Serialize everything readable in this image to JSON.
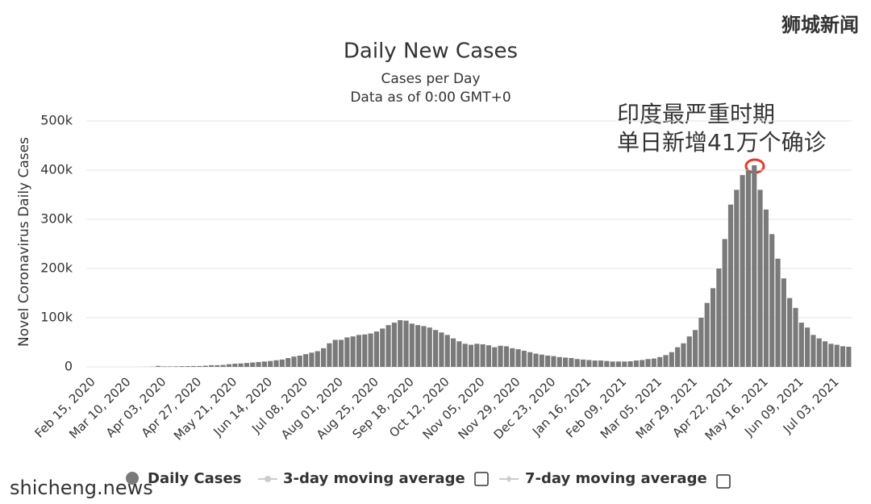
{
  "chart_data": {
    "type": "bar",
    "title": "Daily New Cases",
    "subtitle": [
      "Cases per Day",
      "Data as of 0:00 GMT+0"
    ],
    "y_label": "Novel Coronavirus Daily Cases",
    "annotations": [
      "印度最严重时期",
      "单日新增41万个确诊"
    ],
    "watermarks": [
      "狮城新闻",
      "shicheng.news"
    ],
    "inactive_legend": [
      "3-day moving average",
      "7-day moving average"
    ],
    "ylim": [
      0,
      500000
    ],
    "yticks": [
      0,
      {
        "value": 100000,
        "label": "100k"
      },
      {
        "value": 200000,
        "label": "200k"
      },
      {
        "value": 300000,
        "label": "300k"
      },
      {
        "value": 400000,
        "label": "400k"
      },
      {
        "value": 500000,
        "label": "500k"
      }
    ],
    "grid": true,
    "categories": [
      "Feb 15, 2020",
      null,
      null,
      null,
      null,
      null,
      "Mar 10, 2020",
      null,
      null,
      null,
      null,
      null,
      "Apr 03, 2020",
      null,
      null,
      null,
      null,
      null,
      "Apr 27, 2020",
      null,
      null,
      null,
      null,
      null,
      "May 21, 2020",
      null,
      null,
      null,
      null,
      null,
      "Jun 14, 2020",
      null,
      null,
      null,
      null,
      null,
      "Jul 08, 2020",
      null,
      null,
      null,
      null,
      null,
      "Aug 01, 2020",
      null,
      null,
      null,
      null,
      null,
      "Aug 25, 2020",
      null,
      null,
      null,
      null,
      null,
      "Sep 18, 2020",
      null,
      null,
      null,
      null,
      null,
      "Oct 12, 2020",
      null,
      null,
      null,
      null,
      null,
      "Nov 05, 2020",
      null,
      null,
      null,
      null,
      null,
      "Nov 29, 2020",
      null,
      null,
      null,
      null,
      null,
      "Dec 23, 2020",
      null,
      null,
      null,
      null,
      null,
      "Jan 16, 2021",
      null,
      null,
      null,
      null,
      null,
      "Feb 09, 2021",
      null,
      null,
      null,
      null,
      null,
      "Mar 05, 2021",
      null,
      null,
      null,
      null,
      null,
      "Mar 29, 2021",
      null,
      null,
      null,
      null,
      null,
      "Apr 22, 2021",
      null,
      null,
      null,
      null,
      null,
      "May 16, 2021",
      null,
      null,
      null,
      null,
      null,
      "Jun 09, 2021",
      null,
      null,
      null,
      null,
      null,
      "Jul 03, 2021",
      null,
      null
    ],
    "series": [
      {
        "name": "Daily Cases",
        "color": "#7a7a7a",
        "values": [
          0,
          0,
          0,
          0,
          0,
          0,
          0,
          0,
          100,
          200,
          400,
          2000,
          1000,
          1000,
          1200,
          1500,
          1600,
          1800,
          1800,
          2500,
          3500,
          3500,
          4000,
          5500,
          6500,
          7000,
          8000,
          9000,
          10000,
          11000,
          12000,
          13500,
          15000,
          18000,
          21000,
          23000,
          26000,
          29000,
          32000,
          38000,
          48000,
          55000,
          55000,
          60000,
          62000,
          65000,
          66000,
          68000,
          72000,
          78000,
          85000,
          90000,
          95000,
          94000,
          88000,
          85000,
          83000,
          80000,
          75000,
          70000,
          65000,
          58000,
          52000,
          47000,
          45000,
          47000,
          46000,
          44000,
          40000,
          43000,
          42000,
          38000,
          36000,
          33000,
          30000,
          27000,
          25000,
          23000,
          22000,
          20000,
          19000,
          18000,
          16000,
          15000,
          14000,
          13000,
          13000,
          12000,
          11000,
          11000,
          11000,
          11500,
          13000,
          14000,
          16000,
          17000,
          20000,
          24000,
          30000,
          40000,
          48000,
          62000,
          75000,
          100000,
          130000,
          160000,
          200000,
          260000,
          330000,
          360000,
          390000,
          400000,
          410000,
          360000,
          320000,
          270000,
          220000,
          180000,
          140000,
          120000,
          90000,
          80000,
          65000,
          58000,
          52000,
          47000,
          45000,
          42000,
          41000
        ]
      }
    ]
  }
}
